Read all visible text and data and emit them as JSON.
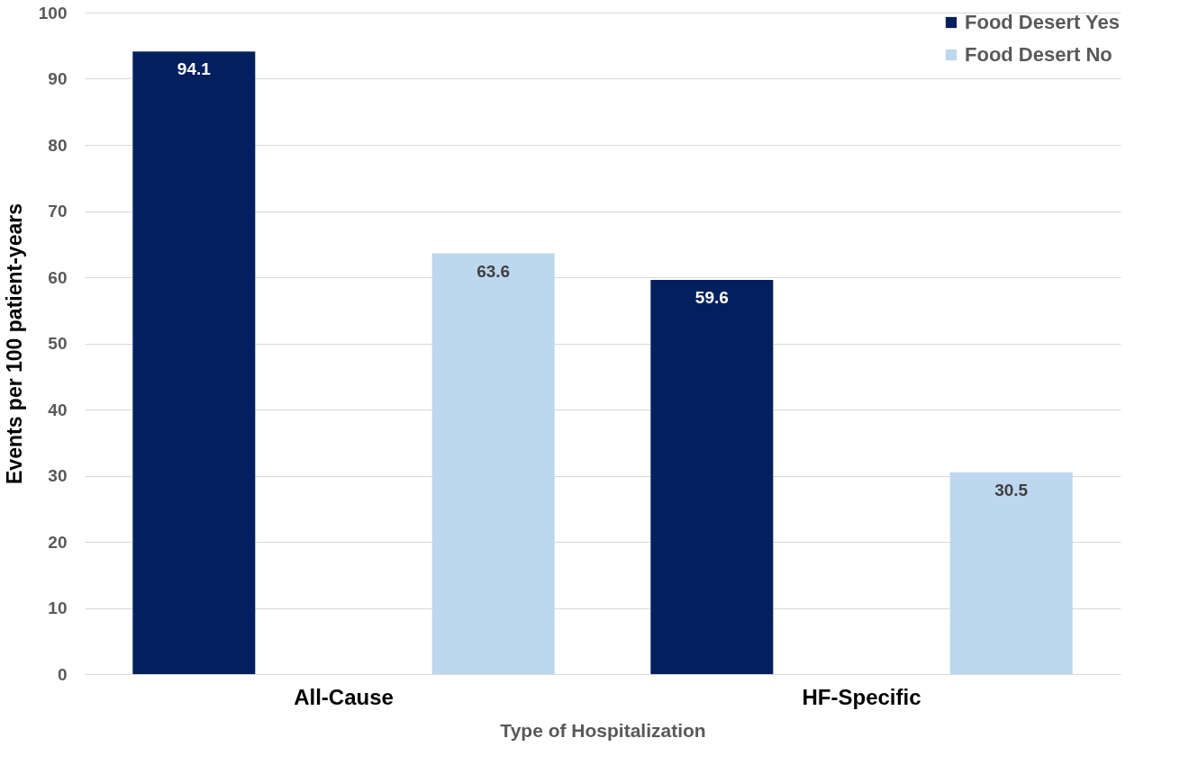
{
  "chart_data": {
    "type": "bar",
    "xlabel": "Type of Hospitalization",
    "ylabel": "Events per 100 patient-years",
    "categories": [
      "All-Cause",
      "HF-Specific"
    ],
    "series": [
      {
        "name": "Food Desert Yes",
        "color": "#03205e",
        "values": [
          94.1,
          59.6
        ]
      },
      {
        "name": "Food Desert No",
        "color": "#bdd7ee",
        "values": [
          63.6,
          30.5
        ]
      }
    ],
    "ylim": [
      0,
      100
    ],
    "yticks": [
      0,
      10,
      20,
      30,
      40,
      50,
      60,
      70,
      80,
      90,
      100
    ],
    "grid": "y",
    "legend": "top right",
    "data_labels": true
  }
}
